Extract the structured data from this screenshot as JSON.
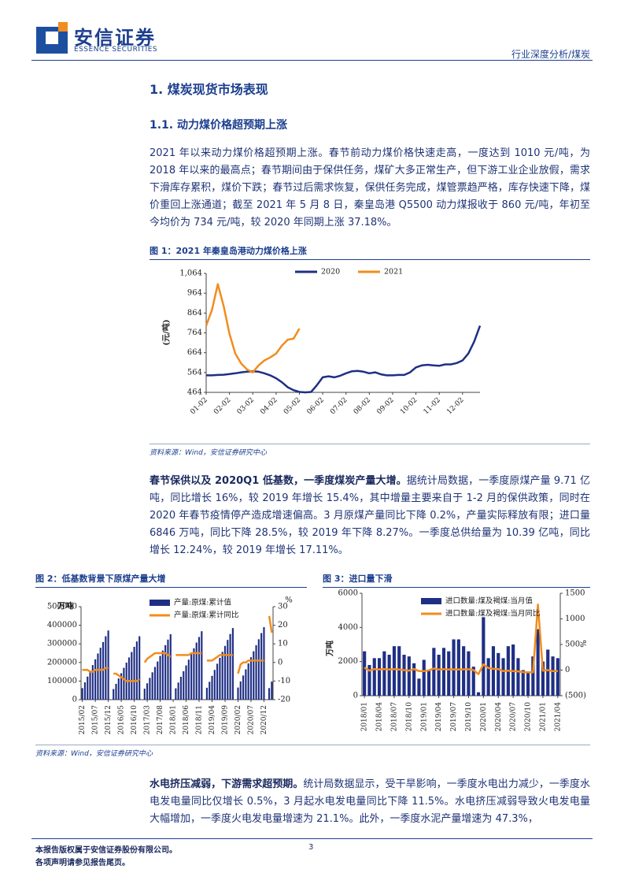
{
  "header": {
    "logo_cn": "安信证券",
    "logo_en": "ESSENCE SECURITIES",
    "category": "行业深度分析/煤炭"
  },
  "headings": {
    "h1": "1. 煤炭现货市场表现",
    "h2": "1.1. 动力煤价格超预期上涨"
  },
  "paragraphs": [
    {
      "text": "2021 年以来动力煤价格超预期上涨。春节前动力煤价格快速走高，一度达到 1010 元/吨，为 2018 年以来的最高点；春节期间由于保供任务，煤矿大多正常生产，但下游工业企业放假，需求下滑库存累积，煤价下跌；春节过后需求恢复，保供任务完成，煤管票趋严格，库存快速下降，煤价重回上涨通道；截至 2021 年 5 月 8 日，秦皇岛港 Q5500 动力煤报收于 860 元/吨，年初至今均价为 734 元/吨，较 2020 年同期上涨 37.18%。"
    },
    {
      "lead": "春节保供以及 2020Q1 低基数，一季度煤炭产量大增。",
      "text": "据统计局数据，一季度原煤产量 9.71 亿吨，同比增长 16%，较 2019 年增长 15.4%，其中增量主要来自于 1-2 月的保供政策，同时在 2020 年春节疫情停产造成增速偏高。3 月原煤产量同比下降 0.2%，产量实际释放有限；进口量 6846 万吨，同比下降 28.5%，较 2019 年下降 8.27%。一季度总供给量为 10.39 亿吨，同比增长 12.24%，较 2019 年增长 17.11%。"
    },
    {
      "lead": "水电挤压减弱，下游需求超预期。",
      "text": "统计局数据显示，受干旱影响，一季度水电出力减少，一季度水电发电量同比仅增长 0.5%，3 月起水电发电量同比下降 11.5%。水电挤压减弱导致火电发电量大幅增加，一季度火电发电量增速为 21.1%。此外，一季度水泥产量增速为 47.3%，"
    }
  ],
  "chart_data": [
    {
      "type": "line",
      "title": "图 1：2021 年秦皇岛港动力煤价格上涨",
      "source": "资料来源：Wind，安信证券研究中心",
      "ylabel": "(元/吨)",
      "categories": [
        "01-02",
        null,
        null,
        null,
        "02-02",
        null,
        null,
        null,
        "03-02",
        null,
        null,
        null,
        "04-02",
        null,
        null,
        null,
        "05-02",
        null,
        null,
        null,
        "06-02",
        null,
        null,
        null,
        "07-02",
        null,
        null,
        null,
        "08-02",
        null,
        null,
        null,
        "09-02",
        null,
        null,
        null,
        "10-02",
        null,
        null,
        null,
        "11-02",
        null,
        null,
        null,
        "12-02",
        null,
        null,
        null
      ],
      "ylim": [
        464,
        1064
      ],
      "yticks": [
        464,
        564,
        664,
        764,
        864,
        964,
        {
          "value": 1064,
          "label": "1,064"
        }
      ],
      "series": [
        {
          "name": "2020",
          "color": "#1f2f84",
          "values": [
            550,
            550,
            552,
            553,
            556,
            560,
            565,
            568,
            570,
            568,
            560,
            550,
            535,
            515,
            490,
            475,
            466,
            464,
            466,
            500,
            540,
            545,
            540,
            548,
            560,
            570,
            572,
            568,
            560,
            565,
            555,
            550,
            550,
            552,
            552,
            565,
            590,
            600,
            603,
            600,
            598,
            605,
            605,
            612,
            625,
            660,
            720,
            800
          ]
        },
        {
          "name": "2021",
          "color": "#f28c1e",
          "values": [
            800,
            880,
            1010,
            900,
            760,
            660,
            610,
            580,
            565,
            600,
            625,
            640,
            660,
            700,
            730,
            735,
            786,
            null,
            null,
            null,
            null,
            null,
            null,
            null,
            null,
            null,
            null,
            null,
            null,
            null,
            null,
            null,
            null,
            null,
            null,
            null,
            null,
            null,
            null,
            null,
            null,
            null,
            null,
            null,
            null,
            null,
            null,
            null
          ]
        }
      ]
    },
    {
      "type": "combo",
      "title": "图 2：低基数背景下原煤产量大增",
      "source": "资料来源：Wind，安信证券研究中心",
      "ylabel": "万吨",
      "y2label": "%",
      "categories": [
        "2015/02",
        null,
        null,
        null,
        null,
        "2015/07",
        null,
        null,
        null,
        null,
        "2015/12",
        null,
        null,
        null,
        null,
        "2016/05",
        null,
        null,
        null,
        null,
        "2016/10",
        null,
        null,
        null,
        null,
        "2017/03",
        null,
        null,
        null,
        null,
        "2017/08",
        null,
        null,
        null,
        null,
        "2018/01",
        null,
        null,
        null,
        null,
        "2018/06",
        null,
        null,
        null,
        null,
        "2018/11",
        null,
        null,
        null,
        null,
        "2019/04",
        null,
        null,
        null,
        null,
        "2019/09",
        null,
        null,
        null,
        null,
        "2020/02",
        null,
        null,
        null,
        null,
        "2020/07",
        null,
        null,
        null,
        null,
        "2020/12",
        null,
        null,
        null
      ],
      "ylim": [
        0,
        500000
      ],
      "yticks": [
        0,
        100000,
        200000,
        300000,
        400000,
        500000
      ],
      "y2lim": [
        -20,
        30
      ],
      "y2ticks": [
        -20,
        -10,
        0,
        10,
        20,
        30
      ],
      "series": [
        {
          "name": "产量:原煤:累计值",
          "type": "bar",
          "color": "#1f2f84",
          "values": [
            62000,
            93000,
            124000,
            155000,
            186000,
            217000,
            248000,
            279000,
            310000,
            341000,
            372000,
            null,
            57000,
            85000,
            114000,
            142000,
            171000,
            199000,
            227000,
            256000,
            284000,
            313000,
            341000,
            null,
            59000,
            88000,
            117000,
            147000,
            176000,
            205000,
            235000,
            264000,
            293000,
            323000,
            352000,
            null,
            61000,
            92000,
            123000,
            153000,
            184000,
            215000,
            245000,
            276000,
            307000,
            337000,
            368000,
            null,
            64000,
            96000,
            128000,
            160000,
            193000,
            225000,
            257000,
            289000,
            321000,
            353000,
            385000,
            null,
            65000,
            98000,
            130000,
            163000,
            195000,
            228000,
            260000,
            293000,
            325000,
            358000,
            390000,
            null,
            62000,
            97000
          ]
        },
        {
          "name": "产量:原煤:累计同比",
          "type": "line",
          "axis": "y2",
          "color": "#f28c1e",
          "values": [
            -4,
            -4,
            -4,
            -5,
            -5,
            -4,
            -4,
            -4,
            -4,
            -3,
            -3,
            null,
            -6,
            -6,
            -7,
            -8,
            -9,
            -10,
            -10,
            -10,
            -10,
            -10,
            -9,
            null,
            0,
            2,
            3,
            4,
            5,
            5,
            5,
            5,
            5,
            4,
            3,
            null,
            4,
            4,
            4,
            4,
            4,
            4,
            5,
            5,
            5,
            5,
            5,
            null,
            1,
            1,
            1,
            2,
            3,
            4,
            4,
            4,
            4,
            4,
            4,
            null,
            -6,
            -1,
            0,
            0,
            1,
            1,
            1,
            1,
            1,
            1,
            1,
            null,
            25,
            16
          ]
        }
      ]
    },
    {
      "type": "combo",
      "title": "图 3：进口量下滑",
      "source": "资料来源：Wind，安信证券研究中心",
      "ylabel": "万吨",
      "y2label": "%",
      "categories": [
        "2018/01",
        null,
        null,
        "2018/04",
        null,
        null,
        "2018/07",
        null,
        null,
        "2018/10",
        null,
        null,
        "2019/01",
        null,
        null,
        "2019/04",
        null,
        null,
        "2019/07",
        null,
        null,
        "2019/10",
        null,
        null,
        "2020/01",
        null,
        null,
        "2020/04",
        null,
        null,
        "2020/07",
        null,
        null,
        "2020/10",
        null,
        null,
        "2021/01",
        null,
        null,
        "2021/04"
      ],
      "ylim": [
        0,
        6000
      ],
      "yticks": [
        0,
        2000,
        4000,
        6000
      ],
      "y2lim": [
        -500,
        1500
      ],
      "y2ticks": [
        {
          "value": -500,
          "label": "(500)"
        },
        0,
        500,
        1000,
        1500
      ],
      "series": [
        {
          "name": "进口数量:煤及褐煤:当月值",
          "type": "bar",
          "color": "#1f2f84",
          "values": [
            2600,
            1800,
            2200,
            2200,
            2600,
            2400,
            2900,
            2900,
            2400,
            2300,
            1900,
            1000,
            2100,
            1500,
            2800,
            2400,
            2800,
            2600,
            3300,
            3300,
            2900,
            2600,
            1700,
            200,
            4600,
            2200,
            2900,
            2500,
            2200,
            2900,
            3000,
            2200,
            1500,
            1400,
            2300,
            3900,
            2000,
            2700,
            2300,
            2200
          ]
        },
        {
          "name": "进口数量:煤及褐煤:当月同比",
          "type": "line",
          "axis": "y2",
          "color": "#f28c1e",
          "values": [
            50,
            -10,
            20,
            10,
            20,
            10,
            20,
            10,
            0,
            -10,
            20,
            -20,
            -20,
            -5,
            30,
            10,
            20,
            10,
            15,
            10,
            15,
            15,
            0,
            -80,
            110,
            40,
            25,
            20,
            -20,
            -10,
            -20,
            -25,
            -40,
            -45,
            -40,
            1280,
            -10,
            0,
            -20,
            -20
          ]
        }
      ]
    }
  ],
  "footer": {
    "copyright": "本报告版权属于安信证券股份有限公司。",
    "notice": "各项声明请参见报告尾页。",
    "page": "3"
  }
}
